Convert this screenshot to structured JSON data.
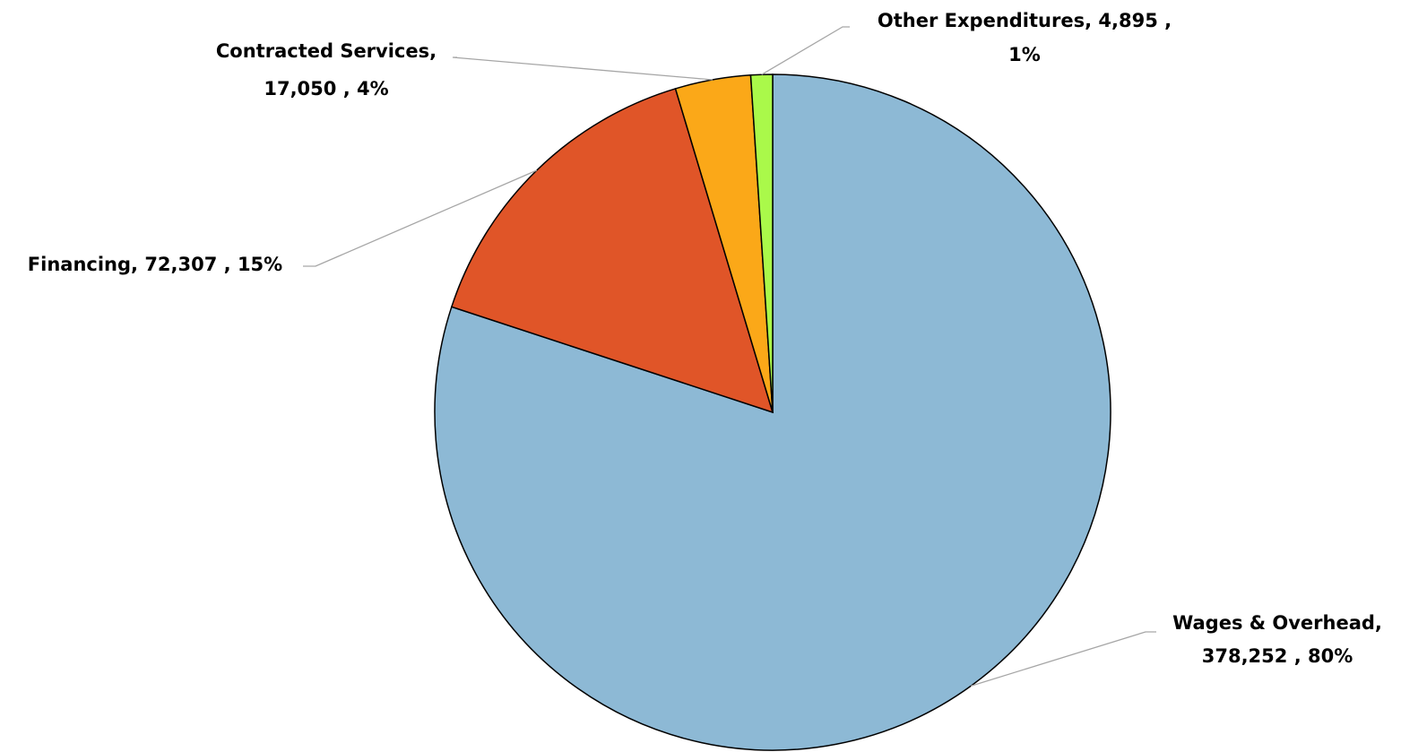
{
  "chart_data": {
    "type": "pie",
    "start_angle_deg": 0,
    "direction": "clockwise",
    "slices": [
      {
        "label": "Wages & Overhead",
        "value": 378252,
        "value_label": "378,252",
        "percent_label": "80%",
        "color": "#8db9d5"
      },
      {
        "label": "Financing",
        "value": 72307,
        "value_label": "72,307",
        "percent_label": "15%",
        "color": "#e05528"
      },
      {
        "label": "Contracted Services",
        "value": 17050,
        "value_label": "17,050",
        "percent_label": "4%",
        "color": "#fba818"
      },
      {
        "label": "Other Expenditures",
        "value": 4895,
        "value_label": "4,895",
        "percent_label": "1%",
        "color": "#aaf94a"
      }
    ],
    "data_labels": [
      {
        "lines": [
          "Wages & Overhead,",
          "378,252 , 80%"
        ]
      },
      {
        "lines": [
          "Financing,  72,307 , 15%"
        ]
      },
      {
        "lines": [
          "Contracted Services,",
          "17,050 , 4%"
        ]
      },
      {
        "lines": [
          "Other Expenditures,  4,895 ,",
          "1%"
        ]
      }
    ]
  }
}
